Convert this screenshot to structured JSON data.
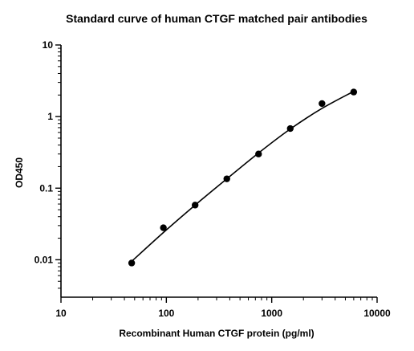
{
  "chart_data": {
    "type": "scatter",
    "title": "Standard curve of human CTGF matched pair antibodies",
    "xlabel": "Recombinant Human CTGF protein (pg/ml)",
    "ylabel": "OD450",
    "xscale": "log",
    "yscale": "log",
    "xlim": [
      10,
      10000
    ],
    "ylim": [
      0.003,
      10
    ],
    "x_ticks": [
      10,
      100,
      1000,
      10000
    ],
    "x_tick_labels": [
      "10",
      "100",
      "1000",
      "10000"
    ],
    "y_ticks": [
      0.01,
      0.1,
      1,
      10
    ],
    "y_tick_labels": [
      "0.01",
      "0.1",
      "1",
      "10"
    ],
    "grid": false,
    "legend": "none",
    "series": [
      {
        "x": [
          46.875,
          93.75,
          187.5,
          375,
          750,
          1500,
          3000,
          6000
        ],
        "y": [
          0.009,
          0.028,
          0.058,
          0.135,
          0.3,
          0.68,
          1.52,
          2.2
        ],
        "marker": "circle",
        "color": "#000000"
      }
    ],
    "fit_curve": {
      "type": "smooth",
      "color": "#000000",
      "x": [
        46.875,
        93.75,
        187.5,
        375,
        750,
        1500,
        3000,
        6000
      ],
      "y": [
        0.0095,
        0.024,
        0.058,
        0.135,
        0.31,
        0.67,
        1.3,
        2.25
      ]
    }
  }
}
